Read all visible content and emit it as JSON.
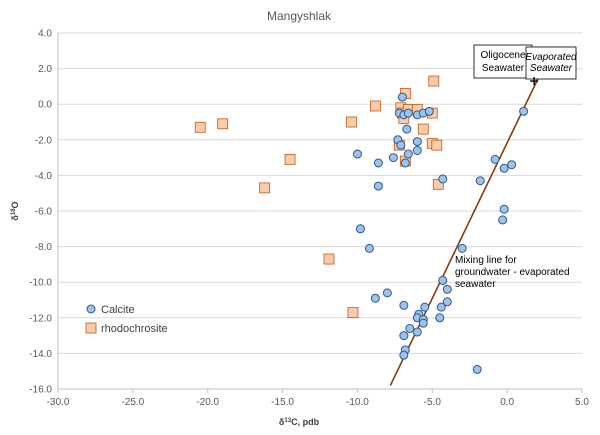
{
  "chart_data": {
    "type": "scatter",
    "title": "Mangyshlak",
    "xlabel": "δ13C, pdb",
    "ylabel": "δ18O",
    "xlim": [
      -30,
      5
    ],
    "ylim": [
      -16,
      4
    ],
    "x_ticks": [
      "-30.0",
      "-25.0",
      "-20.0",
      "-15.0",
      "-10.0",
      "-5.0",
      "0.0",
      "5.0"
    ],
    "y_ticks": [
      "4.0",
      "2.0",
      "0.0",
      "-2.0",
      "-4.0",
      "-6.0",
      "-8.0",
      "-10.0",
      "-12.0",
      "-14.0",
      "-16.0"
    ],
    "grid": "horizontal",
    "legend_position": "lower-left",
    "colors": {
      "calcite": "#9dc3e6",
      "calcite_edge": "#2f5597",
      "rhodochrosite": "#f8cbad",
      "rhodochrosite_edge": "#c55a11",
      "mixing_line": "#843c0c"
    },
    "series": [
      {
        "name": "Calcite",
        "marker": "circle",
        "points": [
          [
            -7.0,
            0.4
          ],
          [
            -7.2,
            -0.5
          ],
          [
            -6.9,
            -0.6
          ],
          [
            -6.6,
            -0.5
          ],
          [
            -6.0,
            -0.6
          ],
          [
            -5.6,
            -0.5
          ],
          [
            -5.2,
            -0.4
          ],
          [
            -6.7,
            -1.4
          ],
          [
            -7.3,
            -2.0
          ],
          [
            -7.1,
            -2.3
          ],
          [
            -6.0,
            -2.1
          ],
          [
            -6.0,
            -2.6
          ],
          [
            -6.6,
            -2.8
          ],
          [
            -7.6,
            -3.0
          ],
          [
            -6.8,
            -3.3
          ],
          [
            -10.0,
            -2.8
          ],
          [
            -8.6,
            -3.3
          ],
          [
            -8.6,
            -4.6
          ],
          [
            -4.3,
            -4.2
          ],
          [
            -1.8,
            -4.3
          ],
          [
            -0.8,
            -3.1
          ],
          [
            -0.2,
            -3.6
          ],
          [
            0.3,
            -3.4
          ],
          [
            1.1,
            -0.4
          ],
          [
            -0.2,
            -5.9
          ],
          [
            -0.3,
            -6.5
          ],
          [
            -9.8,
            -7.0
          ],
          [
            -9.2,
            -8.1
          ],
          [
            -3.0,
            -8.1
          ],
          [
            -4.3,
            -9.9
          ],
          [
            -4.0,
            -10.4
          ],
          [
            -8.0,
            -10.6
          ],
          [
            -8.8,
            -10.9
          ],
          [
            -6.9,
            -11.3
          ],
          [
            -4.0,
            -11.1
          ],
          [
            -4.4,
            -11.4
          ],
          [
            -5.5,
            -11.4
          ],
          [
            -5.9,
            -11.8
          ],
          [
            -6.0,
            -12.0
          ],
          [
            -5.6,
            -12.1
          ],
          [
            -4.5,
            -12.0
          ],
          [
            -5.6,
            -12.3
          ],
          [
            -6.5,
            -12.6
          ],
          [
            -6.0,
            -12.8
          ],
          [
            -6.9,
            -13.0
          ],
          [
            -6.8,
            -13.8
          ],
          [
            -6.9,
            -14.1
          ],
          [
            -2.0,
            -14.9
          ]
        ]
      },
      {
        "name": "rhodochrosite",
        "marker": "square",
        "points": [
          [
            -20.5,
            -1.3
          ],
          [
            -19.0,
            -1.1
          ],
          [
            -14.5,
            -3.1
          ],
          [
            -16.2,
            -4.7
          ],
          [
            -11.9,
            -8.7
          ],
          [
            -10.3,
            -11.7
          ],
          [
            -10.4,
            -1.0
          ],
          [
            -8.8,
            -0.1
          ],
          [
            -7.1,
            -0.2
          ],
          [
            -6.8,
            0.6
          ],
          [
            -7.0,
            -0.5
          ],
          [
            -6.6,
            -0.3
          ],
          [
            -6.9,
            -0.8
          ],
          [
            -6.0,
            -0.3
          ],
          [
            -4.9,
            1.3
          ],
          [
            -5.0,
            -0.5
          ],
          [
            -5.6,
            -1.4
          ],
          [
            -7.2,
            -2.3
          ],
          [
            -5.0,
            -2.2
          ],
          [
            -4.7,
            -2.3
          ],
          [
            -6.8,
            -3.2
          ],
          [
            -4.6,
            -4.5
          ]
        ]
      }
    ],
    "mixing_line": {
      "from": [
        -7.8,
        -15.8
      ],
      "to": [
        2.5,
        2.2
      ]
    },
    "annotations": [
      {
        "lines": [
          "Mixing line for",
          "groundwater - evaporated",
          "seawater"
        ]
      },
      {
        "lines": [
          "Oligocene",
          "Seawater"
        ]
      },
      {
        "lines": [
          "Evaporated",
          "Seawater"
        ],
        "italic": true
      }
    ],
    "cross_marker": [
      1.8,
      1.3
    ]
  }
}
